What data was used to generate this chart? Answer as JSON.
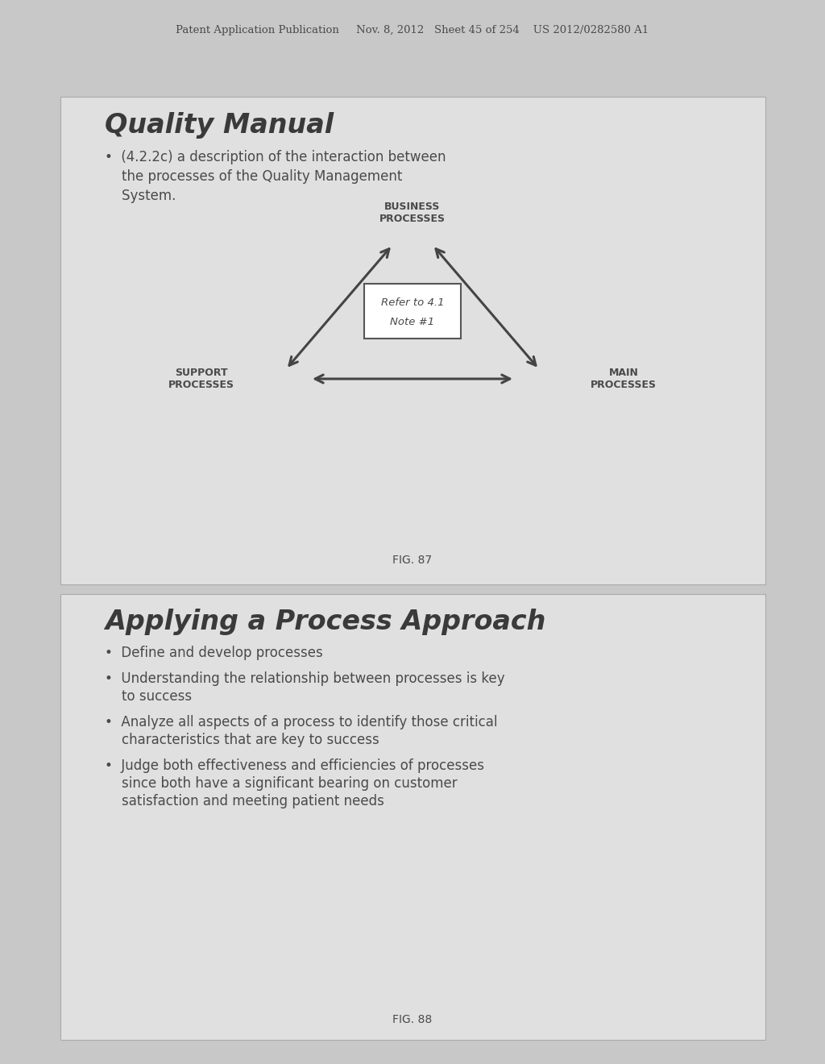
{
  "bg_color": "#c8c8c8",
  "panel_color": "#e0e0e0",
  "panel_edge_color": "#aaaaaa",
  "header_text": "Patent Application Publication     Nov. 8, 2012   Sheet 45 of 254    US 2012/0282580 A1",
  "header_fontsize": 9.5,
  "panel1_title": "Quality Manual",
  "fig87_label": "FIG. 87",
  "diagram_top_label": "BUSINESS\nPROCESSES",
  "diagram_left_label": "SUPPORT\nPROCESSES",
  "diagram_right_label": "MAIN\nPROCESSES",
  "diagram_center_line1": "Refer to 4.1",
  "diagram_center_line2": "Note #1",
  "panel2_title": "Applying a Process Approach",
  "fig88_label": "FIG. 88",
  "text_color": "#4a4a4a",
  "title_color": "#3a3a3a",
  "arrow_color": "#444444"
}
